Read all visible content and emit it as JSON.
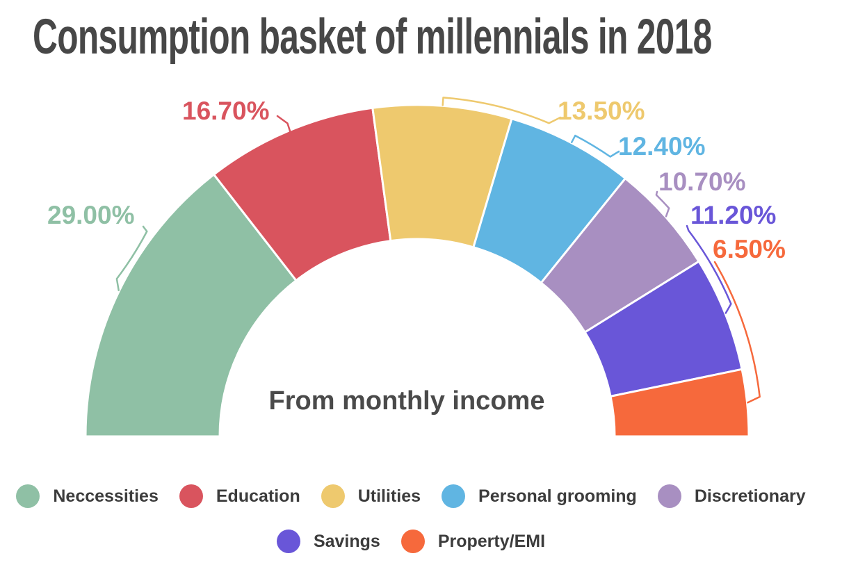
{
  "page": {
    "background_color": "#ffffff"
  },
  "chart_data": {
    "type": "pie",
    "subtype": "semi-donut",
    "title": "Consumption basket of millennials in 2018",
    "center_label": "From monthly income",
    "unit": "%",
    "total": 100,
    "start_angle_deg": 180,
    "end_angle_deg": 0,
    "legend_position": "bottom",
    "categories": [
      "Neccessities",
      "Education",
      "Utilities",
      "Personal grooming",
      "Discretionary",
      "Savings",
      "Property/EMI"
    ],
    "values": [
      29.0,
      16.7,
      13.5,
      12.4,
      10.7,
      11.2,
      6.5
    ],
    "data_labels": [
      "29.00%",
      "16.70%",
      "13.50%",
      "12.40%",
      "10.70%",
      "11.20%",
      "6.50%"
    ],
    "colors": [
      "#8fc0a5",
      "#d9545e",
      "#eec96e",
      "#60b5e2",
      "#a88fc1",
      "#6956d8",
      "#f6693c"
    ],
    "title_color": "#474747",
    "legend_text_color": "#3c3c3c",
    "center_label_color": "#4a4a4a"
  }
}
